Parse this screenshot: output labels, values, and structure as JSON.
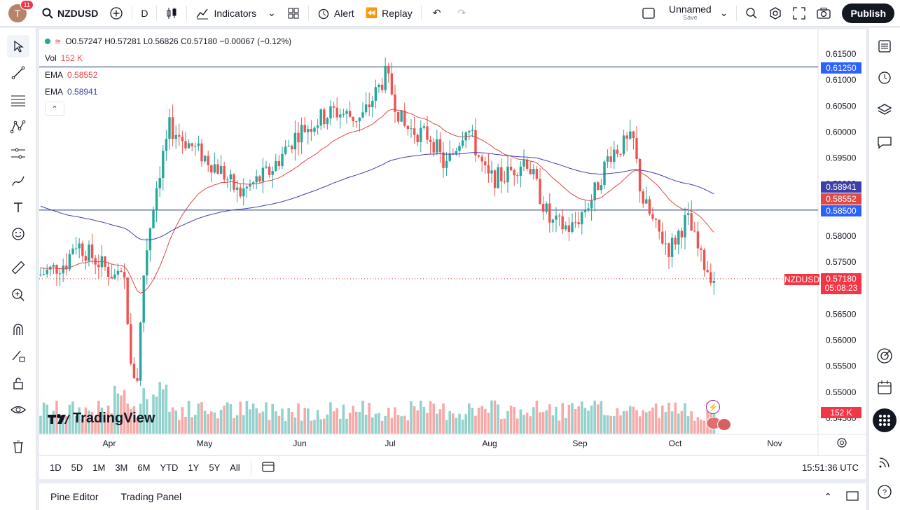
{
  "topbar": {
    "avatar_letter": "T",
    "notifications": "11",
    "symbol": "NZDUSD",
    "interval": "D",
    "indicators_label": "Indicators",
    "alert_label": "Alert",
    "replay_label": "Replay",
    "layout_name": "Unnamed",
    "layout_sub": "Save",
    "publish_label": "Publish"
  },
  "legend": {
    "ohlc": "O0.57247 H0.57281 L0.56826 C0.57180 −0.00067 (−0.12%)",
    "vol_label": "Vol",
    "vol_value": "152 K",
    "ema1_label": "EMA",
    "ema1_value": "0.58552",
    "ema2_label": "EMA",
    "ema2_value": "0.58941"
  },
  "price_axis": {
    "ticks": [
      "0.61500",
      "0.61000",
      "0.60500",
      "0.60000",
      "0.59500",
      "0.59000",
      "0.58000",
      "0.57500",
      "0.56500",
      "0.56000",
      "0.55500",
      "0.55000",
      "0.54500"
    ],
    "tags": {
      "level_top": "0.61250",
      "ema2": "0.58941",
      "ema1": "0.58552",
      "level_mid": "0.58500",
      "last_price": "0.57180",
      "countdown": "05:08:23",
      "volume": "152 K"
    },
    "symbol_tag": "NZDUSD"
  },
  "time_axis": {
    "labels": [
      "Apr",
      "May",
      "Jun",
      "Jul",
      "Aug",
      "Sep",
      "Oct",
      "Nov"
    ]
  },
  "watermark": "TradingView",
  "bottombar": {
    "timeframes": [
      "1D",
      "5D",
      "1M",
      "3M",
      "6M",
      "YTD",
      "1Y",
      "5Y",
      "All"
    ],
    "clock": "15:51:36 UTC"
  },
  "panelbar": {
    "pine_editor": "Pine Editor",
    "trading_panel": "Trading Panel"
  },
  "colors": {
    "up": "#26a69a",
    "down": "#ef5350",
    "ema_fast": "#e04848",
    "ema_slow": "#3f3fa8",
    "line": "#2962ff",
    "accent": "#2962ff"
  },
  "chart_data": {
    "type": "candlestick",
    "ylim": [
      0.5435,
      0.6165
    ],
    "horizontal_levels": [
      0.6125,
      0.585
    ],
    "last_price": 0.5718,
    "candles": [],
    "ema_fast_last": 0.58552,
    "ema_slow_last": 0.58941
  }
}
